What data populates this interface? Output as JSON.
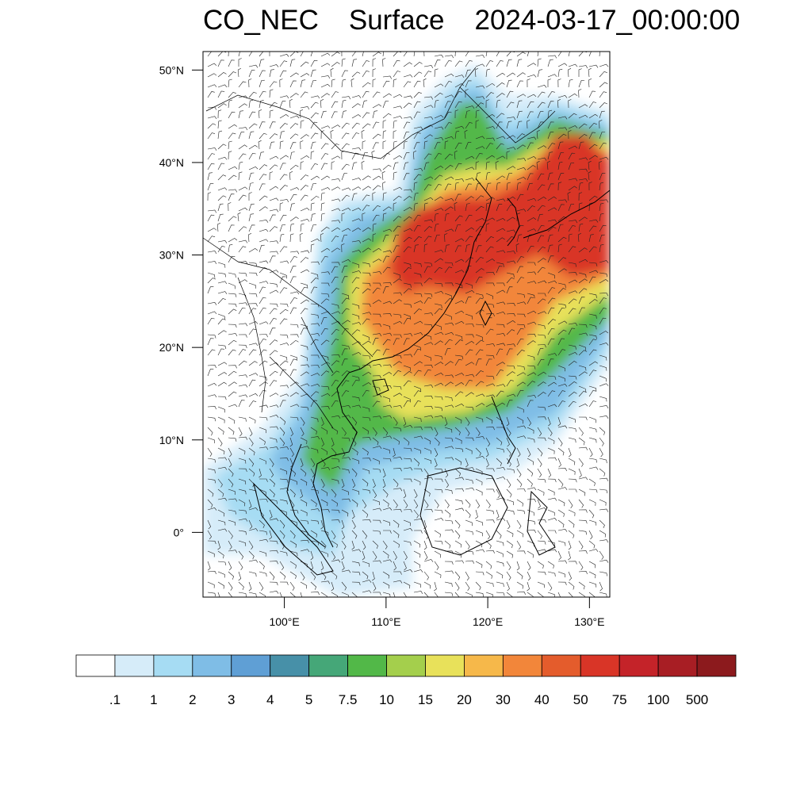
{
  "title": {
    "species": "CO_NEC",
    "level": "Surface",
    "datetime": "2024-03-17_00:00:00"
  },
  "axes": {
    "lat_labels": [
      "50°N",
      "40°N",
      "30°N",
      "20°N",
      "10°N",
      "0°"
    ],
    "lon_labels": [
      "100°E",
      "110°E",
      "120°E",
      "130°E"
    ],
    "lat_values": [
      50,
      40,
      30,
      20,
      10,
      0
    ],
    "lon_values": [
      100,
      110,
      120,
      130
    ],
    "lat_range": [
      -7,
      52
    ],
    "lon_range": [
      92,
      132
    ]
  },
  "colorbar": {
    "labels": [
      ".1",
      "1",
      "2",
      "3",
      "4",
      "5",
      "7.5",
      "10",
      "15",
      "20",
      "30",
      "40",
      "50",
      "75",
      "100",
      "500"
    ],
    "colors": [
      "#ffffff",
      "#d6ecf9",
      "#a6dcf3",
      "#7fbde6",
      "#5f9fd5",
      "#4790a8",
      "#45a778",
      "#52b848",
      "#a4cf4c",
      "#e8e15a",
      "#f6b84a",
      "#f2863a",
      "#e45c2c",
      "#d93527",
      "#c42329",
      "#a81e24",
      "#8c1a1d"
    ]
  },
  "map": {
    "field": "CO concentration, surface",
    "highest_bin_region": "East China Sea / Yellow Sea / Korea / Japan",
    "colors": {
      "very_low": "#d6ecf9",
      "low": "#a6dcf3",
      "mid_low": "#7fbde6",
      "mid": "#52b848",
      "mid_high": "#e8e15a",
      "high": "#f2863a",
      "very_high": "#d93527"
    }
  }
}
